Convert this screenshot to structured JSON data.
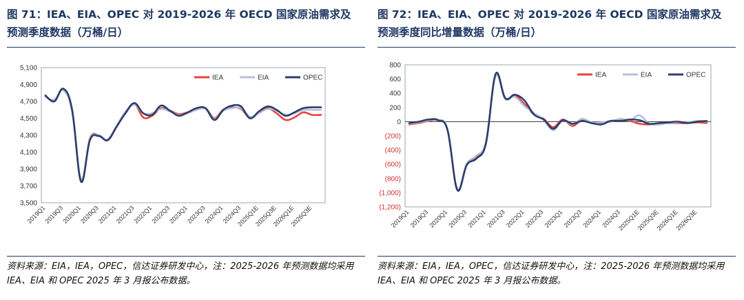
{
  "left": {
    "title": "图 71：IEA、EIA、OPEC 对 2019-2026 年 OECD 国家原油需求及预测季度数据（万桶/日）",
    "source": "资料来源：EIA，IEA，OPEC，信达证券研发中心，注：2025-2026 年预测数据均采用 IEA、EIA 和 OPEC 2025 年 3 月报公布数据。"
  },
  "right": {
    "title": "图 72：IEA、EIA、OPEC 对 2019-2026 年 OECD 国家原油需求及预测季度同比增量数据（万桶/日）",
    "source": "资料来源：EIA，IEA，OPEC，信达证券研发中心，注：2025-2026 年预测数据均采用 IEA、EIA 和 OPEC 2025 年 3 月报公布数据。"
  },
  "colors": {
    "IEA": "#e8413c",
    "EIA": "#b4c1d9",
    "OPEC": "#2c3e6b",
    "frame": "#1f3864"
  },
  "chart_data": [
    {
      "type": "line",
      "x": [
        "2019Q1",
        "2019Q2",
        "2019Q3",
        "2019Q4",
        "2020Q1",
        "2020Q2",
        "2020Q3",
        "2020Q4",
        "2021Q1",
        "2021Q2",
        "2021Q3",
        "2021Q4",
        "2022Q1",
        "2022Q2",
        "2022Q3",
        "2022Q4",
        "2023Q1",
        "2023Q2",
        "2023Q3",
        "2023Q4",
        "2024Q1",
        "2024Q2",
        "2024Q3",
        "2024Q4",
        "2025Q1E",
        "2025Q2E",
        "2025Q3E",
        "2025Q4E",
        "2026Q1E",
        "2026Q2E",
        "2026Q3E",
        "2026Q4E"
      ],
      "x_tick_labels": [
        "2019Q1",
        "2019Q3",
        "2020Q1",
        "2020Q3",
        "2021Q1",
        "2021Q3",
        "2022Q1",
        "2022Q3",
        "2023Q1",
        "2023Q3",
        "2024Q1",
        "2024Q3",
        "2025Q1E",
        "2025Q3E",
        "2026Q1E",
        "2026Q3E"
      ],
      "ylim": [
        3500,
        5100
      ],
      "y_ticks": [
        "3,500",
        "3,700",
        "3,900",
        "4,100",
        "4,300",
        "4,500",
        "4,700",
        "4,900",
        "5,100"
      ],
      "legend_position": "top-right",
      "series": [
        {
          "name": "IEA",
          "values": [
            4760,
            4710,
            4840,
            4590,
            3760,
            4260,
            4300,
            4240,
            4400,
            4570,
            4670,
            4510,
            4530,
            4620,
            4590,
            4550,
            4570,
            4610,
            4620,
            4500,
            4600,
            4630,
            4610,
            4510,
            4560,
            4620,
            4560,
            4480,
            4510,
            4570,
            4540,
            4540
          ]
        },
        {
          "name": "EIA",
          "values": [
            4750,
            4720,
            4830,
            4580,
            3780,
            4250,
            4300,
            4250,
            4410,
            4580,
            4660,
            4560,
            4560,
            4610,
            4580,
            4540,
            4560,
            4600,
            4610,
            4490,
            4590,
            4620,
            4620,
            4520,
            4560,
            4610,
            4590,
            4540,
            4560,
            4600,
            4600,
            4600
          ]
        },
        {
          "name": "OPEC",
          "values": [
            4770,
            4700,
            4850,
            4600,
            3750,
            4240,
            4290,
            4240,
            4400,
            4560,
            4680,
            4560,
            4540,
            4650,
            4590,
            4530,
            4570,
            4620,
            4620,
            4480,
            4600,
            4650,
            4640,
            4500,
            4580,
            4640,
            4600,
            4530,
            4570,
            4620,
            4630,
            4630
          ]
        }
      ]
    },
    {
      "type": "line",
      "x": [
        "2019Q1",
        "2019Q2",
        "2019Q3",
        "2019Q4",
        "2020Q1",
        "2020Q2",
        "2020Q3",
        "2020Q4",
        "2021Q1",
        "2021Q2",
        "2021Q3",
        "2021Q4",
        "2022Q1",
        "2022Q2",
        "2022Q3",
        "2022Q4",
        "2023Q1",
        "2023Q2",
        "2023Q3",
        "2023Q4",
        "2024Q1",
        "2024Q2",
        "2024Q3",
        "2024Q4",
        "2025Q1E",
        "2025Q2E",
        "2025Q3E",
        "2025Q4E",
        "2026Q1E",
        "2026Q2E",
        "2026Q3E",
        "2026Q4E"
      ],
      "x_tick_labels": [
        "2019Q1",
        "2019Q3",
        "2020Q1",
        "2020Q3",
        "2021Q1",
        "2021Q3",
        "2022Q1",
        "2022Q3",
        "2023Q1",
        "2023Q3",
        "2024Q1",
        "2024Q3",
        "2025Q1E",
        "2025Q3E",
        "2026Q1E",
        "2026Q3E"
      ],
      "ylim": [
        -1200,
        800
      ],
      "y_ticks": [
        "800",
        "600",
        "400",
        "200",
        "0",
        "(200)",
        "(400)",
        "(600)",
        "(800)",
        "(1,000)",
        "(1,200)"
      ],
      "legend_position": "top-right",
      "series": [
        {
          "name": "IEA",
          "values": [
            -40,
            -20,
            10,
            20,
            -120,
            -950,
            -600,
            -500,
            -300,
            660,
            330,
            370,
            250,
            100,
            40,
            -80,
            30,
            -60,
            20,
            -20,
            -20,
            10,
            20,
            10,
            -30,
            -40,
            -30,
            -20,
            -20,
            -20,
            -10,
            -20
          ]
        },
        {
          "name": "EIA",
          "values": [
            -30,
            -10,
            20,
            30,
            -110,
            -940,
            -590,
            -480,
            -280,
            640,
            320,
            350,
            220,
            120,
            30,
            -120,
            20,
            -40,
            40,
            -10,
            -10,
            0,
            40,
            20,
            90,
            -30,
            -40,
            -20,
            -10,
            -10,
            10,
            0
          ]
        },
        {
          "name": "OPEC",
          "values": [
            -20,
            0,
            30,
            20,
            -120,
            -960,
            -610,
            -520,
            -300,
            670,
            330,
            380,
            300,
            100,
            30,
            -100,
            20,
            -30,
            10,
            -20,
            -40,
            10,
            10,
            30,
            20,
            -30,
            -20,
            -10,
            0,
            -20,
            0,
            10
          ]
        }
      ]
    }
  ]
}
